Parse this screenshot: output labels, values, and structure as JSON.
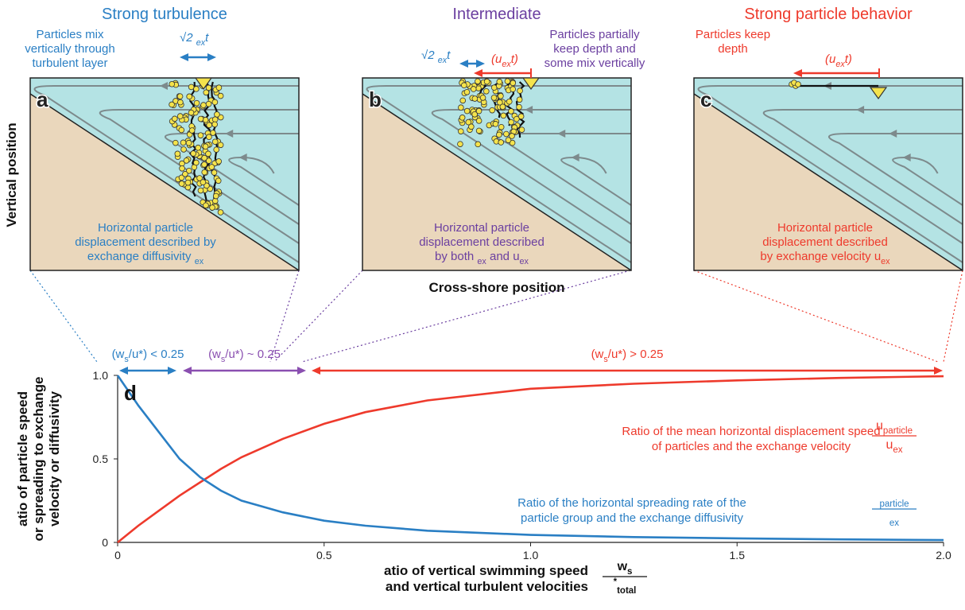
{
  "panels": [
    {
      "title": "Strong turbulence",
      "letter": "a",
      "color": "#2a7fc4",
      "note": [
        [
          "Particles mix"
        ],
        [
          "vertically through"
        ],
        [
          "turbulent layer"
        ]
      ],
      "formulas": [
        [
          "√2 ",
          {
            "sub": "ex"
          },
          "t"
        ]
      ],
      "description": [
        [
          "Horizontal particle"
        ],
        [
          "displacement described by"
        ],
        [
          "exchange diffusivity ",
          {
            "sub": "ex"
          }
        ]
      ]
    },
    {
      "title": "Intermediate",
      "letter": "b",
      "color": "#6b3fa0",
      "note": [
        [
          "Particles partially"
        ],
        [
          "keep depth and"
        ],
        [
          "some mix vertically"
        ]
      ],
      "formulas": [
        [
          "√2 ",
          {
            "sub": "ex"
          },
          "t"
        ],
        [
          "(u",
          {
            "sub": "ex"
          },
          "t)"
        ]
      ],
      "description": [
        [
          "Horizontal particle"
        ],
        [
          "displacement described"
        ],
        [
          "by both ",
          {
            "sub": "ex"
          },
          " and u",
          {
            "sub": "ex"
          }
        ]
      ]
    },
    {
      "title": "Strong particle behavior",
      "letter": "c",
      "color": "#ee3a2c",
      "note": [
        [
          "Particles keep"
        ],
        [
          "depth"
        ]
      ],
      "formulas": [
        [
          "(u",
          {
            "sub": "ex"
          },
          "t)"
        ]
      ],
      "description": [
        [
          "Horizontal particle"
        ],
        [
          "displacement described"
        ],
        [
          "by exchange velocity u",
          {
            "sub": "ex"
          }
        ]
      ]
    }
  ],
  "vertical_label": "Vertical position",
  "cross_shore_label": "Cross-shore position",
  "chart_data": {
    "type": "line",
    "letter": "d",
    "x": [
      0,
      0.05,
      0.1,
      0.15,
      0.2,
      0.25,
      0.3,
      0.4,
      0.5,
      0.6,
      0.75,
      1.0,
      1.25,
      1.5,
      1.75,
      2.0
    ],
    "series": [
      {
        "name": "Ratio of the mean horizontal displacement speed",
        "color": "#ee3a2c",
        "values": [
          0,
          0.1,
          0.19,
          0.28,
          0.36,
          0.44,
          0.51,
          0.62,
          0.71,
          0.78,
          0.85,
          0.92,
          0.95,
          0.97,
          0.985,
          0.995
        ],
        "note": [
          [
            "of particles and the exchange velocity"
          ]
        ],
        "fraction": {
          "num": [
            "u",
            {
              "sub": "particle"
            }
          ],
          "den": [
            "u",
            {
              "sub": "ex"
            }
          ]
        }
      },
      {
        "name": "Ratio of the horizontal spreading rate of the",
        "color": "#2a7fc4",
        "values": [
          1.0,
          0.82,
          0.66,
          0.5,
          0.39,
          0.31,
          0.25,
          0.18,
          0.13,
          0.1,
          0.07,
          0.045,
          0.032,
          0.024,
          0.018,
          0.014
        ],
        "note": [
          [
            "particle group and the exchange diffusivity"
          ]
        ],
        "fraction": {
          "num": [
            {
              "sub": "particle"
            }
          ],
          "den": [
            {
              "sub": "ex"
            }
          ]
        }
      }
    ],
    "regimes": [
      {
        "label": [
          "(w",
          {
            "sub": "s"
          },
          "/u*) < 0.25"
        ],
        "color": "#2a7fc4"
      },
      {
        "label": [
          "(w",
          {
            "sub": "s"
          },
          "/u*) ~ 0.25"
        ],
        "color": "#8a4fb0"
      },
      {
        "label": [
          "(w",
          {
            "sub": "s"
          },
          "/u*) > 0.25"
        ],
        "color": "#ee3a2c"
      }
    ],
    "xlabel": [
      [
        "atio of vertical swimming speed"
      ],
      [
        "and vertical turbulent velocities"
      ]
    ],
    "xlabel_fraction": {
      "num": [
        "w",
        {
          "sub": "s"
        }
      ],
      "den": [
        {
          "sup": "*"
        },
        {
          "sub": "total"
        }
      ]
    },
    "ylabel": [
      [
        "atio of particle speed"
      ],
      [
        "or spreading to exchange"
      ],
      [
        "velocity or diffusivity"
      ]
    ],
    "xlim": [
      0,
      2
    ],
    "ylim": [
      0,
      1
    ],
    "xticks": [
      0,
      0.5,
      {
        "value": 1,
        "label": "1.0"
      },
      1.5,
      {
        "value": 2,
        "label": "2.0"
      }
    ],
    "yticks": [
      0,
      0.5,
      {
        "value": 1,
        "label": "1.0"
      }
    ],
    "grid": false
  }
}
